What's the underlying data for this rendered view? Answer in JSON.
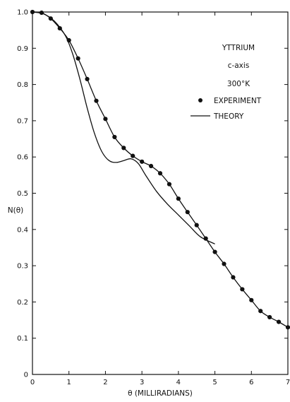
{
  "chart_data": {
    "type": "scatter",
    "title": "",
    "xlabel": "θ (MILLIRADIANS)",
    "ylabel": "N(θ)",
    "xlim": [
      0,
      7
    ],
    "ylim": [
      0,
      1.0
    ],
    "x_ticks": [
      0,
      1,
      2,
      3,
      4,
      5,
      6,
      7
    ],
    "x_tick_labels": [
      "0",
      "1",
      "2",
      "3",
      "4",
      "5",
      "6",
      "7"
    ],
    "y_ticks": [
      0,
      0.1,
      0.2,
      0.3,
      0.4,
      0.5,
      0.6,
      0.7,
      0.8,
      0.9,
      1.0
    ],
    "y_tick_labels": [
      "0",
      "0.1",
      "0.2",
      "0.3",
      "0.4",
      "0.5",
      "0.6",
      "0.7",
      "0.8",
      "0.9",
      "1.0"
    ],
    "grid": false,
    "annotations": [
      "YTTRIUM",
      "c-axis",
      "300°K"
    ],
    "legend": [
      {
        "label": "EXPERIMENT",
        "marker": "dot"
      },
      {
        "label": "THEORY",
        "marker": "line"
      }
    ],
    "series": [
      {
        "name": "EXPERIMENT",
        "style": "points-with-smooth-line",
        "x": [
          0,
          0.25,
          0.5,
          0.75,
          1.0,
          1.25,
          1.5,
          1.75,
          2.0,
          2.25,
          2.5,
          2.75,
          3.0,
          3.25,
          3.5,
          3.75,
          4.0,
          4.25,
          4.5,
          4.75,
          5.0,
          5.25,
          5.5,
          5.75,
          6.0,
          6.25,
          6.5,
          6.75,
          7.0
        ],
        "y": [
          1.0,
          0.998,
          0.982,
          0.955,
          0.922,
          0.872,
          0.815,
          0.755,
          0.705,
          0.655,
          0.625,
          0.603,
          0.587,
          0.575,
          0.555,
          0.525,
          0.485,
          0.448,
          0.412,
          0.375,
          0.338,
          0.305,
          0.268,
          0.235,
          0.205,
          0.175,
          0.158,
          0.145,
          0.13
        ]
      },
      {
        "name": "THEORY",
        "style": "line",
        "x": [
          0,
          0.3,
          0.6,
          0.9,
          1.1,
          1.3,
          1.5,
          1.7,
          1.9,
          2.1,
          2.3,
          2.5,
          2.7,
          2.9,
          3.1,
          3.4,
          3.7,
          4.0,
          4.3,
          4.6,
          5.0
        ],
        "y": [
          1.0,
          0.995,
          0.975,
          0.935,
          0.885,
          0.815,
          0.735,
          0.665,
          0.615,
          0.59,
          0.585,
          0.59,
          0.595,
          0.582,
          0.55,
          0.505,
          0.47,
          0.44,
          0.41,
          0.38,
          0.36
        ]
      }
    ]
  }
}
